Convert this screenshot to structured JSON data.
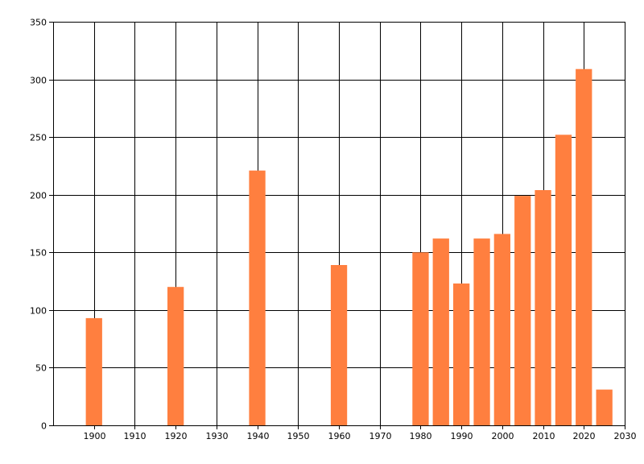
{
  "chart_data": {
    "type": "bar",
    "x": [
      1900,
      1920,
      1940,
      1960,
      1980,
      1985,
      1990,
      1995,
      2000,
      2005,
      2010,
      2015,
      2020,
      2025
    ],
    "values": [
      93,
      120,
      221,
      139,
      150,
      162,
      123,
      162,
      166,
      199,
      204,
      252,
      309,
      31
    ],
    "title": "",
    "xlabel": "",
    "ylabel": "",
    "xlim": [
      1890,
      2030
    ],
    "ylim": [
      0,
      350
    ],
    "xticks": [
      1900,
      1910,
      1920,
      1930,
      1940,
      1950,
      1960,
      1970,
      1980,
      1990,
      2000,
      2010,
      2020,
      2030
    ],
    "yticks": [
      0,
      50,
      100,
      150,
      200,
      250,
      300,
      350
    ],
    "grid": true,
    "legend": "none",
    "bar_color": "#ff7f3f"
  }
}
